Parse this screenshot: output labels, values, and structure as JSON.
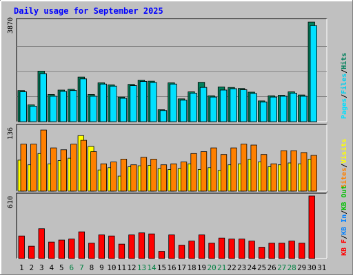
{
  "title": "Daily usage for September 2025",
  "colors": {
    "background": "#c0c0c0",
    "plot_bg": "#c0c0c0",
    "title": "#0000ff",
    "axis_text": "#000000",
    "weekend_day": "#008040",
    "hits": "#00805c",
    "files": "#00d0f0",
    "pages": "#00e0ff",
    "visits": "#ffff00",
    "sites": "#ff8000",
    "kb_in": "#0080ff",
    "kb_out": "#00c000",
    "kb_f": "#ff0000",
    "separator": "#000000"
  },
  "chart_data": [
    {
      "type": "bar",
      "panel": "hits-files-pages",
      "ymax_label": "3870",
      "ylim": [
        0,
        3870
      ],
      "legend": [
        "Pages",
        "/",
        "Files",
        "/",
        "Hits"
      ],
      "categories": [
        "1",
        "2",
        "3",
        "4",
        "5",
        "6",
        "7",
        "8",
        "9",
        "10",
        "11",
        "12",
        "13",
        "14",
        "15",
        "16",
        "17",
        "18",
        "19",
        "20",
        "21",
        "22",
        "23",
        "24",
        "25",
        "26",
        "27",
        "28",
        "29",
        "30",
        "31"
      ],
      "series": [
        {
          "name": "Hits",
          "values": [
            1200,
            650,
            1950,
            1050,
            1220,
            1250,
            1720,
            1050,
            1500,
            1420,
            950,
            1440,
            1600,
            1560,
            460,
            1500,
            880,
            1150,
            1520,
            1000,
            1340,
            1320,
            1280,
            1140,
            800,
            1000,
            1020,
            1150,
            1030,
            3840,
            0
          ]
        },
        {
          "name": "Files",
          "values": [
            1150,
            600,
            1850,
            980,
            1170,
            1200,
            1650,
            980,
            1450,
            1370,
            900,
            1390,
            1550,
            1510,
            430,
            1450,
            830,
            1100,
            1320,
            950,
            1220,
            1270,
            1230,
            1090,
            760,
            950,
            980,
            1100,
            980,
            3700,
            0
          ]
        },
        {
          "name": "Pages",
          "values": [
            1150,
            600,
            1850,
            980,
            1170,
            1200,
            1650,
            980,
            1450,
            1370,
            900,
            1390,
            1550,
            1510,
            430,
            1450,
            830,
            1100,
            1320,
            950,
            1220,
            1270,
            1230,
            1090,
            760,
            950,
            980,
            1100,
            980,
            3700,
            0
          ]
        }
      ]
    },
    {
      "type": "bar",
      "panel": "sites-visits",
      "ymax_label": "136",
      "ylim": [
        0,
        136
      ],
      "legend": [
        "Sites",
        "/",
        "Visits"
      ],
      "categories": [
        "1",
        "2",
        "3",
        "4",
        "5",
        "6",
        "7",
        "8",
        "9",
        "10",
        "11",
        "12",
        "13",
        "14",
        "15",
        "16",
        "17",
        "18",
        "19",
        "20",
        "21",
        "22",
        "23",
        "24",
        "25",
        "26",
        "27",
        "28",
        "29",
        "30",
        "31"
      ],
      "series": [
        {
          "name": "Visits",
          "values": [
            66,
            56,
            80,
            58,
            65,
            70,
            118,
            95,
            45,
            50,
            32,
            52,
            54,
            55,
            48,
            46,
            48,
            58,
            46,
            50,
            44,
            56,
            58,
            68,
            62,
            52,
            56,
            60,
            58,
            68,
            0
          ]
        },
        {
          "name": "Sites",
          "values": [
            100,
            100,
            130,
            92,
            88,
            100,
            108,
            84,
            58,
            62,
            68,
            56,
            72,
            68,
            56,
            58,
            62,
            80,
            84,
            92,
            78,
            92,
            100,
            98,
            78,
            58,
            86,
            86,
            82,
            76,
            0
          ]
        }
      ]
    },
    {
      "type": "bar",
      "panel": "kbytes",
      "ymax_label": "610",
      "ylim": [
        0,
        610
      ],
      "legend": [
        "KB F",
        "/",
        "KB In",
        "/",
        "KB Out"
      ],
      "categories": [
        "1",
        "2",
        "3",
        "4",
        "5",
        "6",
        "7",
        "8",
        "9",
        "10",
        "11",
        "12",
        "13",
        "14",
        "15",
        "16",
        "17",
        "18",
        "19",
        "20",
        "21",
        "22",
        "23",
        "24",
        "25",
        "26",
        "27",
        "28",
        "29",
        "30",
        "31"
      ],
      "series": [
        {
          "name": "KB F",
          "values": [
            220,
            120,
            290,
            160,
            180,
            190,
            260,
            150,
            230,
            220,
            140,
            230,
            250,
            240,
            70,
            230,
            130,
            170,
            230,
            150,
            200,
            190,
            190,
            170,
            110,
            150,
            150,
            170,
            150,
            610,
            0
          ]
        }
      ]
    }
  ],
  "x_labels": [
    "1",
    "2",
    "3",
    "4",
    "5",
    "6",
    "7",
    "8",
    "9",
    "10",
    "11",
    "12",
    "13",
    "14",
    "15",
    "16",
    "17",
    "18",
    "19",
    "20",
    "21",
    "22",
    "23",
    "24",
    "25",
    "26",
    "27",
    "28",
    "29",
    "30",
    "31"
  ],
  "weekend_days": [
    "6",
    "7",
    "13",
    "14",
    "20",
    "21",
    "27",
    "28"
  ]
}
